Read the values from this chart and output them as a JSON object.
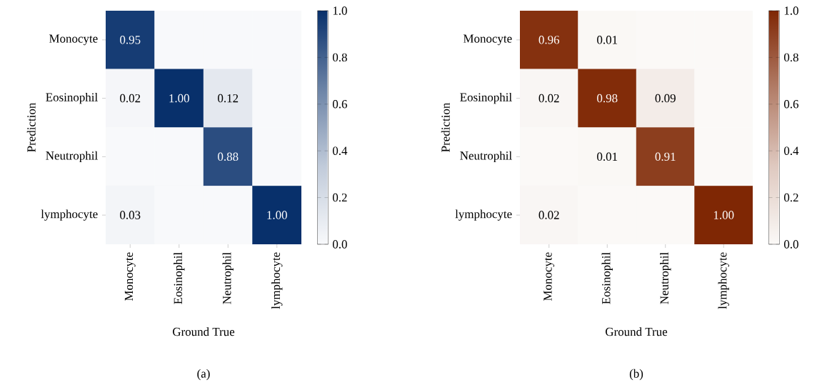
{
  "chart_data": [
    {
      "type": "heatmap",
      "xlabel": "Ground True",
      "ylabel": "Prediction",
      "annotations": [
        "(a)"
      ],
      "color": "#08306b",
      "categories": [
        "Monocyte",
        "Eosinophil",
        "Neutrophil",
        "lymphocyte"
      ],
      "y_categories": [
        "Monocyte",
        "Eosinophil",
        "Neutrophil",
        "lymphocyte"
      ],
      "cells": [
        [
          0.95,
          0,
          0,
          0
        ],
        [
          0.02,
          1.0,
          0.12,
          0
        ],
        [
          0,
          0,
          0.88,
          0
        ],
        [
          0.03,
          0,
          0,
          1.0
        ]
      ],
      "cell_labels": [
        [
          "0.95",
          null,
          null,
          null
        ],
        [
          "0.02",
          "1.00",
          "0.12",
          null
        ],
        [
          null,
          null,
          "0.88",
          null
        ],
        [
          "0.03",
          null,
          null,
          "1.00"
        ]
      ],
      "clim": [
        0,
        1
      ],
      "cticks": [
        {
          "value": 0,
          "label": "0.0"
        },
        {
          "value": 0.2,
          "label": "0.2"
        },
        {
          "value": 0.4,
          "label": "0.4"
        },
        {
          "value": 0.6,
          "label": "0.6"
        },
        {
          "value": 0.8,
          "label": "0.8"
        },
        {
          "value": 1,
          "label": "1.0"
        }
      ]
    },
    {
      "type": "heatmap",
      "xlabel": "Ground True",
      "ylabel": "Prediction",
      "annotations": [
        "(b)"
      ],
      "color": "#7f2704",
      "categories": [
        "Monocyte",
        "Eosinophil",
        "Neutrophil",
        "lymphocyte"
      ],
      "y_categories": [
        "Monocyte",
        "Eosinophil",
        "Neutrophil",
        "lymphocyte"
      ],
      "cells": [
        [
          0.96,
          0.01,
          0,
          0
        ],
        [
          0.02,
          0.98,
          0.09,
          0
        ],
        [
          0,
          0.01,
          0.91,
          0
        ],
        [
          0.02,
          0,
          0,
          1.0
        ]
      ],
      "cell_labels": [
        [
          "0.96",
          "0.01",
          null,
          null
        ],
        [
          "0.02",
          "0.98",
          "0.09",
          null
        ],
        [
          null,
          "0.01",
          "0.91",
          null
        ],
        [
          "0.02",
          null,
          null,
          "1.00"
        ]
      ],
      "clim": [
        0,
        1
      ],
      "cticks": [
        {
          "value": 0,
          "label": "0.0"
        },
        {
          "value": 0.2,
          "label": "0.2"
        },
        {
          "value": 0.4,
          "label": "0.4"
        },
        {
          "value": 0.6,
          "label": "0.6"
        },
        {
          "value": 0.8,
          "label": "0.8"
        },
        {
          "value": 1,
          "label": "1.0"
        }
      ]
    }
  ]
}
